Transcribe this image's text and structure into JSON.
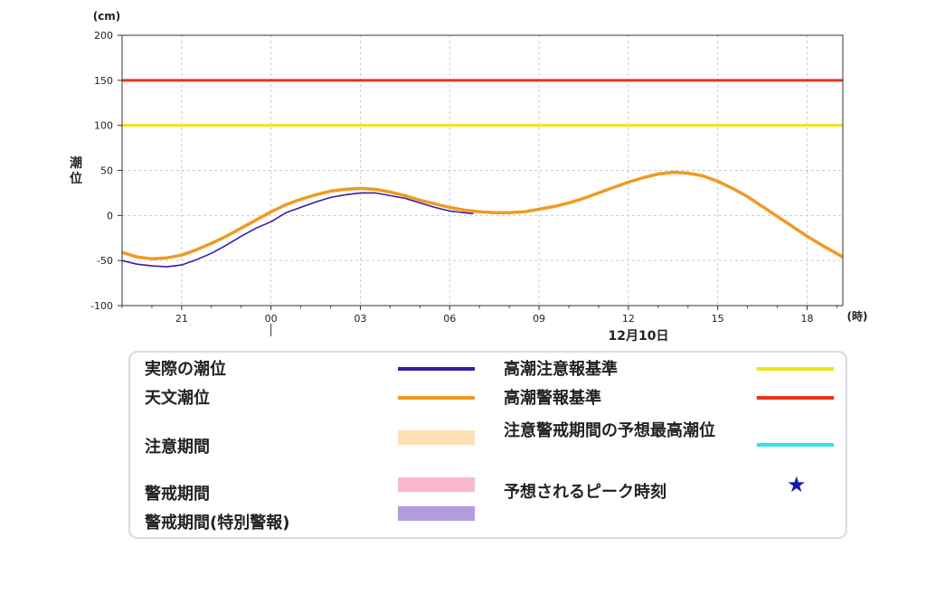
{
  "chart_data": {
    "type": "line",
    "yunit": "(cm)",
    "ylabel": "潮位",
    "xunit": "(時)",
    "date_label": "12月10日",
    "x_range_hours": [
      -5,
      19.2
    ],
    "ylim": [
      -100,
      200
    ],
    "y_ticks": [
      200,
      150,
      100,
      50,
      0,
      -50,
      -100
    ],
    "x_ticks": [
      {
        "h": -3,
        "label": "21"
      },
      {
        "h": 0,
        "label": "00"
      },
      {
        "h": 3,
        "label": "03"
      },
      {
        "h": 6,
        "label": "06"
      },
      {
        "h": 9,
        "label": "09"
      },
      {
        "h": 12,
        "label": "12"
      },
      {
        "h": 15,
        "label": "15"
      },
      {
        "h": 18,
        "label": "18"
      }
    ],
    "grid": true,
    "thresholds": [
      {
        "name": "高潮警報基準",
        "value": 150,
        "color": "#e8341c"
      },
      {
        "name": "高潮注意報基準",
        "value": 100,
        "color": "#efe415"
      }
    ],
    "series": [
      {
        "name": "天文潮位",
        "color": "#f09a21",
        "x": [
          -5,
          -4.5,
          -4,
          -3.5,
          -3,
          -2.5,
          -2,
          -1.5,
          -1,
          -0.5,
          0,
          0.5,
          1,
          1.5,
          2,
          2.5,
          3,
          3.5,
          4,
          4.5,
          5,
          5.5,
          6,
          6.5,
          7,
          7.5,
          8,
          8.5,
          9,
          9.5,
          10,
          10.5,
          11,
          11.5,
          12,
          12.5,
          13,
          13.5,
          14,
          14.5,
          15,
          15.5,
          16,
          16.5,
          17,
          17.5,
          18,
          18.5,
          19.2
        ],
        "y": [
          -41,
          -46,
          -48,
          -47,
          -44,
          -38,
          -31,
          -23,
          -14,
          -5,
          4,
          12,
          18,
          23,
          27,
          29,
          30,
          29,
          26,
          22,
          17,
          13,
          9,
          6,
          4,
          3,
          3,
          4,
          7,
          10,
          14,
          19,
          25,
          31,
          37,
          42,
          46,
          48,
          47,
          44,
          38,
          30,
          21,
          10,
          -1,
          -12,
          -23,
          -33,
          -46
        ]
      },
      {
        "name": "実際の潮位",
        "color": "#3a1aa8",
        "x": [
          -5,
          -4.5,
          -4,
          -3.5,
          -3,
          -2.5,
          -2,
          -1.5,
          -1,
          -0.5,
          0,
          0.5,
          1,
          1.5,
          2,
          2.5,
          3,
          3.5,
          4,
          4.5,
          5,
          5.5,
          6,
          6.5,
          6.8
        ],
        "y": [
          -50,
          -54,
          -56,
          -57,
          -55,
          -49,
          -42,
          -33,
          -23,
          -14,
          -7,
          3,
          9,
          15,
          20,
          23,
          25,
          25,
          22,
          19,
          14,
          9,
          5,
          3,
          2
        ]
      }
    ],
    "peak_marks": []
  },
  "legend": {
    "items": [
      {
        "label": "実際の潮位",
        "kind": "line",
        "color": "#3a1aa8"
      },
      {
        "label": "天文潮位",
        "kind": "line",
        "color": "#f09a21"
      },
      {
        "label": "注意期間",
        "kind": "block",
        "color": "#fde0b4"
      },
      {
        "label": "警戒期間",
        "kind": "block",
        "color": "#fbb7cf"
      },
      {
        "label": "警戒期間(特別警報)",
        "kind": "block",
        "color": "#b39be0"
      },
      {
        "label": "高潮注意報基準",
        "kind": "line",
        "color": "#efe415"
      },
      {
        "label": "高潮警報基準",
        "kind": "line",
        "color": "#e8341c"
      },
      {
        "label": "注意警戒期間の予想最高潮位",
        "kind": "line",
        "color": "#2fe3ee"
      },
      {
        "label": "予想されるピーク時刻",
        "kind": "star",
        "color": "#1018b8",
        "symbol": "★"
      }
    ]
  }
}
